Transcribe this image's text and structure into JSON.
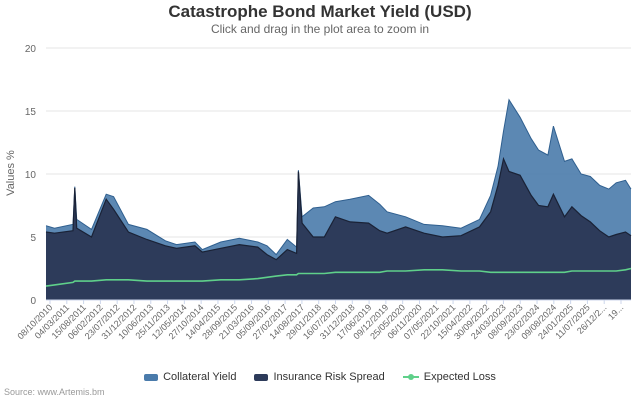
{
  "chart_data": {
    "type": "area",
    "title": "Catastrophe Bond Market Yield (USD)",
    "subtitle": "Click and drag in the plot area to zoom in",
    "ylabel": "Values %",
    "ylim": [
      0,
      20
    ],
    "yticks": [
      0,
      5,
      10,
      15,
      20
    ],
    "grid": true,
    "legend_position": "bottom",
    "x_tick_labels": [
      "08/10/2010",
      "04/03/2011",
      "15/08/2011",
      "06/02/2012",
      "23/07/2012",
      "31/12/2012",
      "10/06/2013",
      "25/11/2013",
      "12/05/2014",
      "27/10/2014",
      "14/04/2015",
      "28/09/2015",
      "21/03/2016",
      "05/09/2016",
      "27/02/2017",
      "14/08/2017",
      "29/01/2018",
      "16/07/2018",
      "31/12/2018",
      "17/06/2019",
      "09/12/2019",
      "25/05/2020",
      "06/11/2020",
      "07/05/2021",
      "22/10/2021",
      "15/04/2022",
      "30/09/2022",
      "24/03/2023",
      "08/09/2023",
      "23/02/2024",
      "09/08/2024",
      "24/01/2025",
      "11/07/2025",
      "26/12/2...",
      "19..."
    ],
    "x": [
      2010.77,
      2011.0,
      2011.5,
      2011.55,
      2011.6,
      2012.0,
      2012.4,
      2012.6,
      2013.0,
      2013.5,
      2014.0,
      2014.3,
      2014.8,
      2015.0,
      2015.5,
      2016.0,
      2016.5,
      2016.75,
      2017.0,
      2017.3,
      2017.55,
      2017.6,
      2017.7,
      2018.0,
      2018.3,
      2018.6,
      2019.0,
      2019.5,
      2019.8,
      2020.0,
      2020.5,
      2021.0,
      2021.5,
      2022.0,
      2022.5,
      2022.8,
      2023.0,
      2023.15,
      2023.3,
      2023.6,
      2023.9,
      2024.1,
      2024.35,
      2024.5,
      2024.8,
      2025.0,
      2025.25,
      2025.5,
      2025.75,
      2026.0,
      2026.2,
      2026.45,
      2026.6
    ],
    "series": [
      {
        "name": "Collateral Yield",
        "color": "#4a7bab",
        "values": [
          5.9,
          5.7,
          6.0,
          9.0,
          6.4,
          5.6,
          8.4,
          8.2,
          6.0,
          5.6,
          4.7,
          4.4,
          4.6,
          4.0,
          4.6,
          4.9,
          4.6,
          4.3,
          3.6,
          4.8,
          4.2,
          10.3,
          6.6,
          7.3,
          7.4,
          7.8,
          8.0,
          8.3,
          7.6,
          7.0,
          6.6,
          6.0,
          5.9,
          5.7,
          6.4,
          8.3,
          10.6,
          13.4,
          15.9,
          14.5,
          12.8,
          11.9,
          11.5,
          13.8,
          11.0,
          11.2,
          10.0,
          9.8,
          9.1,
          8.8,
          9.3,
          9.5,
          8.8
        ]
      },
      {
        "name": "Insurance Risk Spread",
        "color": "#2d3b5a",
        "values": [
          5.4,
          5.3,
          5.5,
          8.9,
          5.7,
          5.0,
          8.0,
          7.2,
          5.4,
          4.8,
          4.3,
          4.1,
          4.3,
          3.8,
          4.1,
          4.4,
          4.2,
          3.6,
          3.2,
          4.0,
          3.7,
          10.2,
          6.1,
          5.0,
          5.0,
          6.6,
          6.2,
          6.1,
          5.5,
          5.3,
          5.8,
          5.3,
          5.0,
          5.1,
          5.8,
          7.0,
          9.1,
          11.2,
          10.2,
          9.9,
          8.3,
          7.5,
          7.4,
          8.4,
          6.6,
          7.4,
          6.7,
          6.2,
          5.5,
          5.0,
          5.2,
          5.4,
          5.1
        ]
      },
      {
        "name": "Expected Loss",
        "color": "#5fd08a",
        "values": [
          1.1,
          1.2,
          1.4,
          1.5,
          1.5,
          1.5,
          1.6,
          1.6,
          1.6,
          1.5,
          1.5,
          1.5,
          1.5,
          1.5,
          1.6,
          1.6,
          1.7,
          1.8,
          1.9,
          2.0,
          2.0,
          2.1,
          2.1,
          2.1,
          2.1,
          2.2,
          2.2,
          2.2,
          2.2,
          2.3,
          2.3,
          2.4,
          2.4,
          2.3,
          2.3,
          2.2,
          2.2,
          2.2,
          2.2,
          2.2,
          2.2,
          2.2,
          2.2,
          2.2,
          2.2,
          2.3,
          2.3,
          2.3,
          2.3,
          2.3,
          2.3,
          2.4,
          2.5
        ]
      }
    ],
    "source": "Source: www.Artemis.bm"
  }
}
